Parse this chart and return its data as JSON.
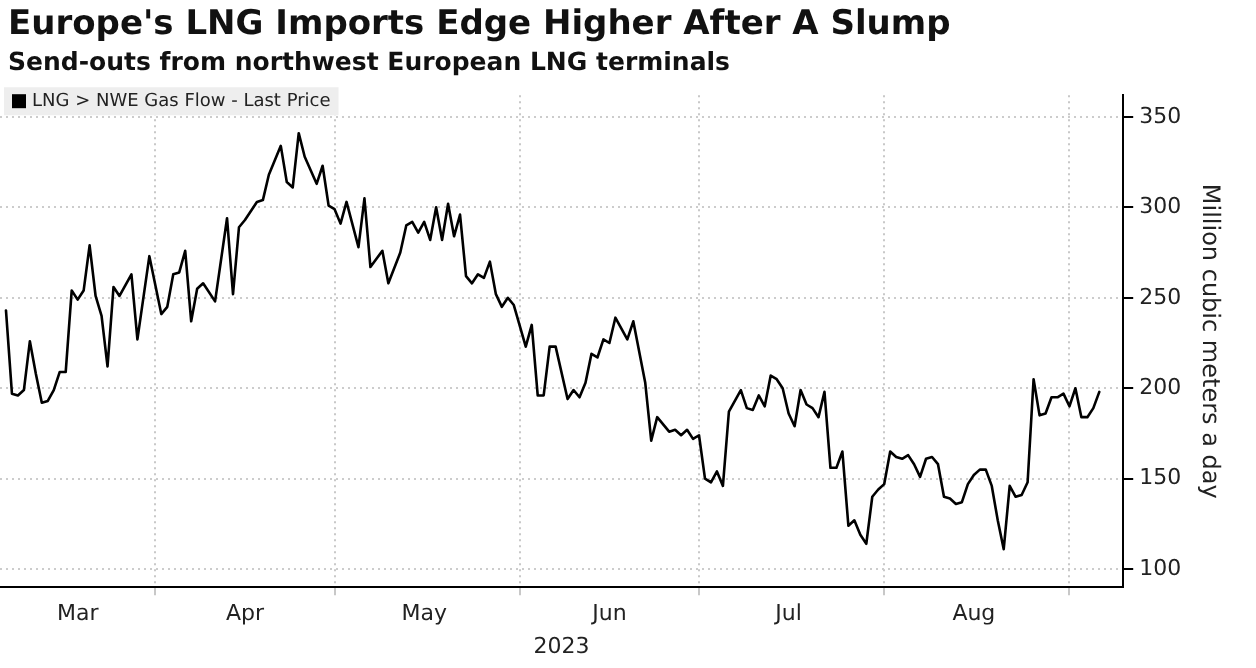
{
  "chart_data": {
    "type": "line",
    "title": "Europe's LNG Imports Edge Higher After A Slump",
    "subtitle": "Send-outs from northwest European LNG terminals",
    "xlabel": "2023",
    "ylabel": "Million cubic meters a day",
    "x": [
      "2023-03-07",
      "2023-03-08",
      "2023-03-09",
      "2023-03-10",
      "2023-03-11",
      "2023-03-12",
      "2023-03-13",
      "2023-03-14",
      "2023-03-15",
      "2023-03-16",
      "2023-03-17",
      "2023-03-18",
      "2023-03-19",
      "2023-03-20",
      "2023-03-21",
      "2023-03-22",
      "2023-03-23",
      "2023-03-24",
      "2023-03-25",
      "2023-03-26",
      "2023-03-28",
      "2023-03-29",
      "2023-03-31",
      "2023-04-02",
      "2023-04-03",
      "2023-04-04",
      "2023-04-05",
      "2023-04-06",
      "2023-04-07",
      "2023-04-08",
      "2023-04-09",
      "2023-04-11",
      "2023-04-13",
      "2023-04-14",
      "2023-04-15",
      "2023-04-16",
      "2023-04-18",
      "2023-04-19",
      "2023-04-20",
      "2023-04-22",
      "2023-04-23",
      "2023-04-24",
      "2023-04-25",
      "2023-04-26",
      "2023-04-28",
      "2023-04-29",
      "2023-04-30",
      "2023-05-01",
      "2023-05-02",
      "2023-05-03",
      "2023-05-05",
      "2023-05-06",
      "2023-05-07",
      "2023-05-09",
      "2023-05-10",
      "2023-05-12",
      "2023-05-13",
      "2023-05-14",
      "2023-05-15",
      "2023-05-16",
      "2023-05-17",
      "2023-05-18",
      "2023-05-19",
      "2023-05-20",
      "2023-05-21",
      "2023-05-22",
      "2023-05-23",
      "2023-05-24",
      "2023-05-25",
      "2023-05-26",
      "2023-05-27",
      "2023-05-28",
      "2023-05-29",
      "2023-05-30",
      "2023-05-31",
      "2023-06-02",
      "2023-06-03",
      "2023-06-04",
      "2023-06-05",
      "2023-06-06",
      "2023-06-07",
      "2023-06-09",
      "2023-06-10",
      "2023-06-11",
      "2023-06-12",
      "2023-06-13",
      "2023-06-14",
      "2023-06-15",
      "2023-06-16",
      "2023-06-17",
      "2023-06-19",
      "2023-06-20",
      "2023-06-22",
      "2023-06-23",
      "2023-06-24",
      "2023-06-26",
      "2023-06-27",
      "2023-06-28",
      "2023-06-29",
      "2023-06-30",
      "2023-07-01",
      "2023-07-02",
      "2023-07-03",
      "2023-07-04",
      "2023-07-05",
      "2023-07-06",
      "2023-07-08",
      "2023-07-09",
      "2023-07-10",
      "2023-07-11",
      "2023-07-12",
      "2023-07-13",
      "2023-07-14",
      "2023-07-15",
      "2023-07-16",
      "2023-07-17",
      "2023-07-18",
      "2023-07-19",
      "2023-07-20",
      "2023-07-21",
      "2023-07-22",
      "2023-07-23",
      "2023-07-24",
      "2023-07-25",
      "2023-07-26",
      "2023-07-27",
      "2023-07-28",
      "2023-07-29",
      "2023-07-30",
      "2023-07-31",
      "2023-08-01",
      "2023-08-02",
      "2023-08-03",
      "2023-08-04",
      "2023-08-05",
      "2023-08-06",
      "2023-08-07",
      "2023-08-08",
      "2023-08-09",
      "2023-08-10",
      "2023-08-11",
      "2023-08-12",
      "2023-08-13",
      "2023-08-14",
      "2023-08-15",
      "2023-08-16",
      "2023-08-17",
      "2023-08-18",
      "2023-08-19",
      "2023-08-20",
      "2023-08-21",
      "2023-08-22",
      "2023-08-23",
      "2023-08-24",
      "2023-08-25",
      "2023-08-26",
      "2023-08-27",
      "2023-08-28",
      "2023-08-29",
      "2023-08-30",
      "2023-08-31",
      "2023-09-01",
      "2023-09-02",
      "2023-09-03",
      "2023-09-04",
      "2023-09-05",
      "2023-09-06"
    ],
    "series": [
      {
        "name": "LNG > NWE Gas Flow - Last Price",
        "color": "#000000",
        "values": [
          243,
          197,
          196,
          199,
          226,
          208,
          192,
          193,
          199,
          209,
          209,
          254,
          249,
          254,
          279,
          251,
          240,
          212,
          256,
          251,
          263,
          227,
          273,
          241,
          245,
          263,
          264,
          276,
          237,
          255,
          258,
          248,
          294,
          252,
          289,
          293,
          303,
          304,
          318,
          334,
          314,
          311,
          341,
          328,
          313,
          323,
          301,
          299,
          291,
          303,
          278,
          305,
          267,
          276,
          258,
          275,
          290,
          292,
          286,
          292,
          282,
          300,
          282,
          302,
          284,
          296,
          262,
          258,
          263,
          261,
          270,
          252,
          245,
          250,
          246,
          223,
          235,
          196,
          196,
          223,
          223,
          194,
          199,
          195,
          203,
          219,
          217,
          227,
          225,
          239,
          227,
          237,
          203,
          171,
          184,
          176,
          177,
          174,
          177,
          172,
          174,
          150,
          148,
          154,
          146,
          187,
          199,
          189,
          188,
          196,
          190,
          207,
          205,
          200,
          186,
          179,
          199,
          191,
          189,
          184,
          198,
          156,
          156,
          165,
          124,
          127,
          119,
          114,
          140,
          144,
          147,
          165,
          162,
          161,
          163,
          158,
          151,
          161,
          162,
          158,
          140,
          139,
          136,
          137,
          147,
          152,
          155,
          155,
          146,
          127,
          111,
          146,
          140,
          141,
          148,
          205,
          185,
          186,
          195,
          195,
          197,
          190,
          200,
          184,
          184,
          189,
          198
        ]
      }
    ],
    "xlim": [
      "2023-03-06",
      "2023-09-10"
    ],
    "xticks": [
      {
        "value": "2023-03-19",
        "label": "Mar"
      },
      {
        "value": "2023-04-01",
        "label": null
      },
      {
        "value": "2023-04-16",
        "label": "Apr"
      },
      {
        "value": "2023-05-01",
        "label": null
      },
      {
        "value": "2023-05-16",
        "label": "May"
      },
      {
        "value": "2023-06-01",
        "label": null
      },
      {
        "value": "2023-06-16",
        "label": "Jun"
      },
      {
        "value": "2023-07-01",
        "label": null
      },
      {
        "value": "2023-07-16",
        "label": "Jul"
      },
      {
        "value": "2023-08-01",
        "label": null
      },
      {
        "value": "2023-08-16",
        "label": "Aug"
      },
      {
        "value": "2023-09-01",
        "label": null
      }
    ],
    "ylim": [
      90,
      362
    ],
    "yticks": [
      100,
      150,
      200,
      250,
      300,
      350
    ],
    "grid": true,
    "legend": "top left",
    "line_style": "solid"
  }
}
